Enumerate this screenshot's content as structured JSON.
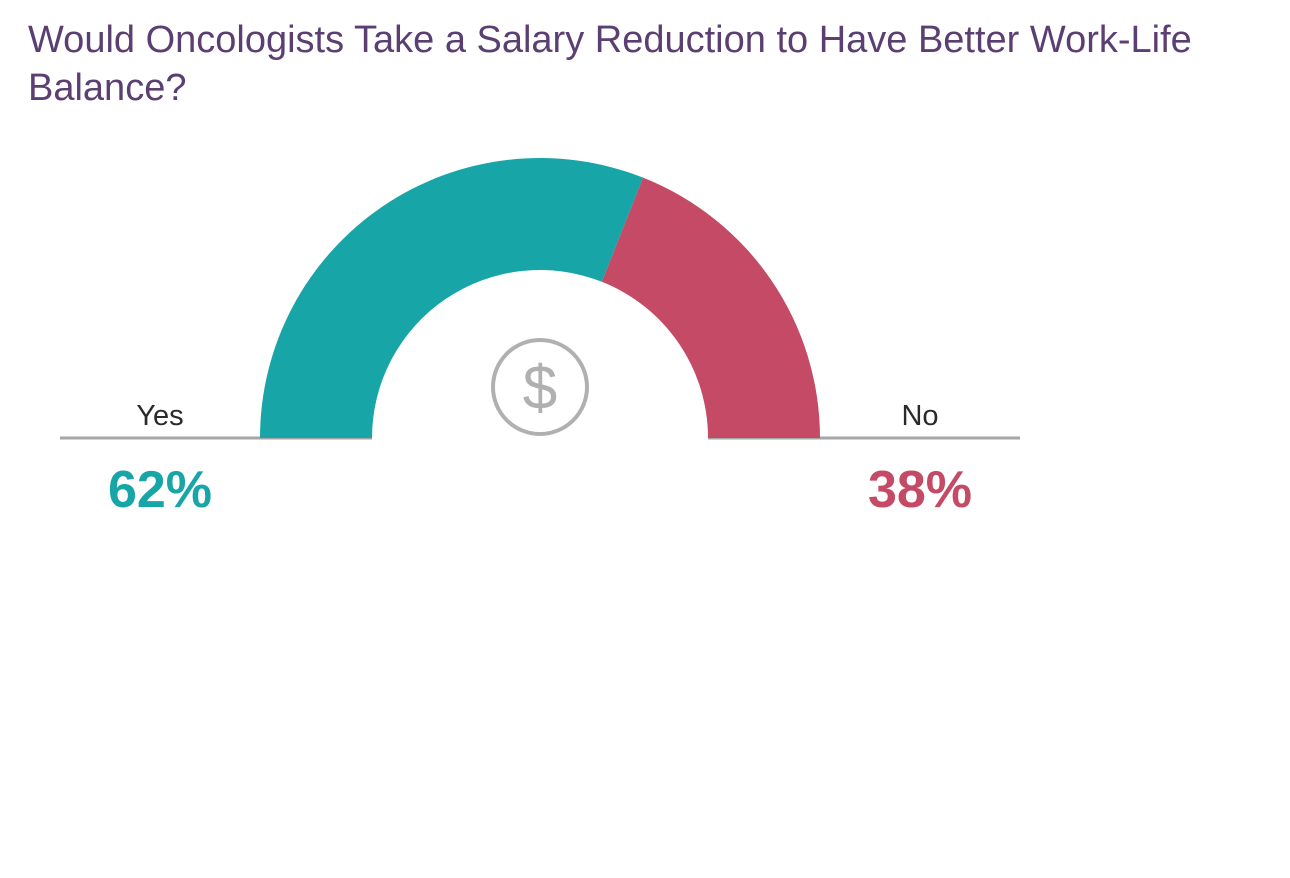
{
  "chart_data": {
    "type": "pie",
    "title": "Would Oncologists Take a Salary Reduction to Have Better Work-Life Balance?",
    "style": "half-donut gauge",
    "series": [
      {
        "name": "Yes",
        "value": 62,
        "label": "62%",
        "color": "#17a5a8"
      },
      {
        "name": "No",
        "value": 38,
        "label": "38%",
        "color": "#c44a66"
      }
    ],
    "center_icon": "dollar-circle-icon",
    "baseline_color": "#a6a6a6",
    "icon_color": "#b0b0b0"
  }
}
